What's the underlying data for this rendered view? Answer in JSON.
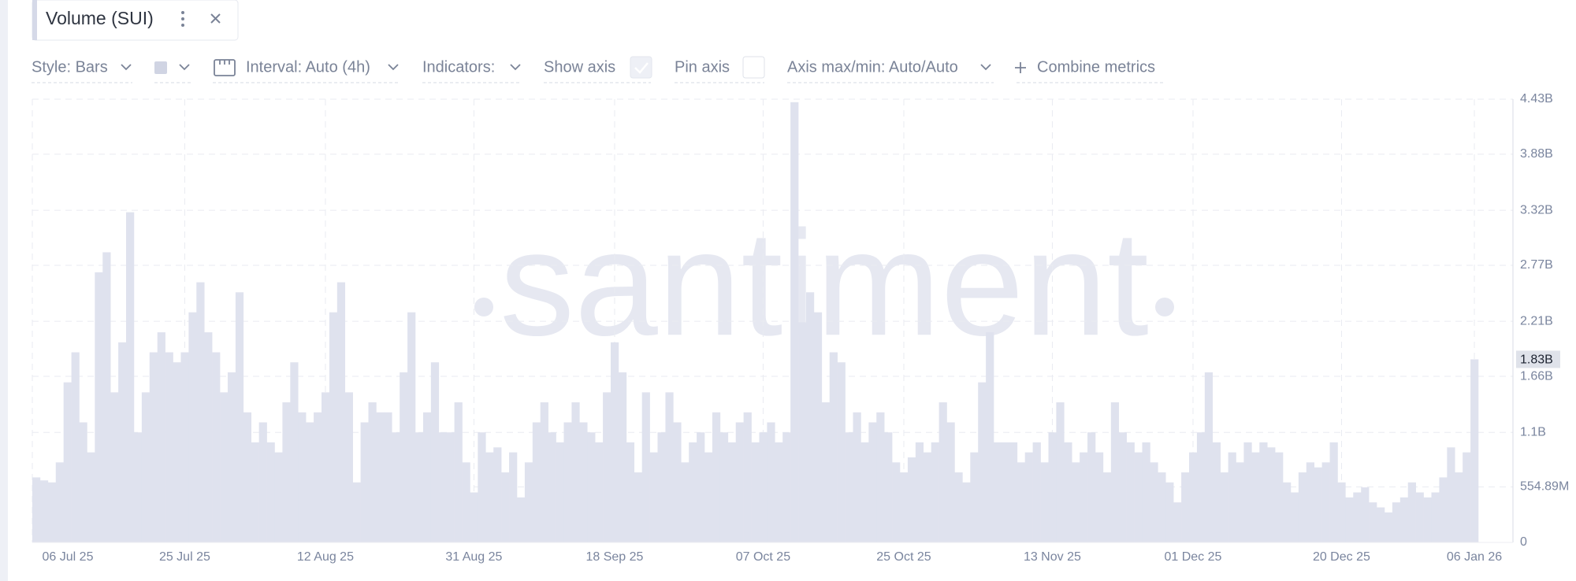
{
  "tab": {
    "title": "Volume (SUI)"
  },
  "toolbar": {
    "style": "Style: Bars",
    "interval": "Interval: Auto (4h)",
    "indicators": "Indicators:",
    "show_axis": "Show axis",
    "show_axis_checked": true,
    "pin_axis": "Pin axis",
    "pin_axis_checked": false,
    "axis_range": "Axis max/min: Auto/Auto",
    "combine": "Combine metrics"
  },
  "chart_data": {
    "type": "bar",
    "watermark": "santiment",
    "color": "#dfe2ee",
    "ylim": [
      0,
      4430000000
    ],
    "yticks": [
      0,
      {
        "value": 554890000,
        "label": "554.89M"
      },
      {
        "value": 1100000000,
        "label": "1.1B"
      },
      {
        "value": 1660000000,
        "label": "1.66B"
      },
      {
        "value": 2210000000,
        "label": "2.21B"
      },
      {
        "value": 2770000000,
        "label": "2.77B"
      },
      {
        "value": 3320000000,
        "label": "3.32B"
      },
      {
        "value": 3880000000,
        "label": "3.88B"
      },
      {
        "value": 4430000000,
        "label": "4.43B"
      }
    ],
    "grid": true,
    "current_value": {
      "value": 1830000000,
      "label": "1.83B"
    },
    "categories": [
      "06 Jul 25",
      null,
      null,
      null,
      null,
      null,
      null,
      null,
      null,
      null,
      null,
      null,
      null,
      null,
      null,
      null,
      null,
      null,
      null,
      "25 Jul 25",
      null,
      null,
      null,
      null,
      null,
      null,
      null,
      null,
      null,
      null,
      null,
      null,
      null,
      null,
      null,
      null,
      null,
      "12 Aug 25",
      null,
      null,
      null,
      null,
      null,
      null,
      null,
      null,
      null,
      null,
      null,
      null,
      null,
      null,
      null,
      null,
      null,
      null,
      "31 Aug 25",
      null,
      null,
      null,
      null,
      null,
      null,
      null,
      null,
      null,
      null,
      null,
      null,
      null,
      null,
      null,
      null,
      null,
      "18 Sep 25",
      null,
      null,
      null,
      null,
      null,
      null,
      null,
      null,
      null,
      null,
      null,
      null,
      null,
      null,
      null,
      null,
      null,
      null,
      "07 Oct 25",
      null,
      null,
      null,
      null,
      null,
      null,
      null,
      null,
      null,
      null,
      null,
      null,
      null,
      null,
      null,
      null,
      null,
      "25 Oct 25",
      null,
      null,
      null,
      null,
      null,
      null,
      null,
      null,
      null,
      null,
      null,
      null,
      null,
      null,
      null,
      null,
      null,
      null,
      "13 Nov 25",
      null,
      null,
      null,
      null,
      null,
      null,
      null,
      null,
      null,
      null,
      null,
      null,
      null,
      null,
      null,
      null,
      null,
      "01 Dec 25",
      null,
      null,
      null,
      null,
      null,
      null,
      null,
      null,
      null,
      null,
      null,
      null,
      null,
      null,
      null,
      null,
      null,
      null,
      "20 Dec 25",
      null,
      null,
      null,
      null,
      null,
      null,
      null,
      null,
      null,
      null,
      null,
      null,
      null,
      null,
      null,
      null,
      "06 Jan 26"
    ],
    "values": [
      650000000.0,
      620000000.0,
      600000000.0,
      800000000.0,
      1600000000.0,
      1900000000.0,
      1200000000.0,
      900000000.0,
      2700000000.0,
      2900000000.0,
      1500000000.0,
      2000000000.0,
      3300000000.0,
      1100000000.0,
      1500000000.0,
      1900000000.0,
      2100000000.0,
      1900000000.0,
      1800000000.0,
      1900000000.0,
      2300000000.0,
      2600000000.0,
      2100000000.0,
      1900000000.0,
      1500000000.0,
      1700000000.0,
      2500000000.0,
      1300000000.0,
      1000000000.0,
      1200000000.0,
      1000000000.0,
      900000000.0,
      1400000000.0,
      1800000000.0,
      1300000000.0,
      1200000000.0,
      1300000000.0,
      1500000000.0,
      2300000000.0,
      2600000000.0,
      1500000000.0,
      600000000.0,
      1200000000.0,
      1400000000.0,
      1300000000.0,
      1300000000.0,
      1100000000.0,
      1700000000.0,
      2300000000.0,
      1100000000.0,
      1300000000.0,
      1800000000.0,
      1100000000.0,
      1100000000.0,
      1400000000.0,
      800000000.0,
      500000000.0,
      1100000000.0,
      900000000.0,
      950000000.0,
      700000000.0,
      900000000.0,
      450000000.0,
      800000000.0,
      1200000000.0,
      1400000000.0,
      1100000000.0,
      1000000000.0,
      1200000000.0,
      1400000000.0,
      1200000000.0,
      1100000000.0,
      1000000000.0,
      1500000000.0,
      2000000000.0,
      1700000000.0,
      1000000000.0,
      700000000.0,
      1500000000.0,
      900000000.0,
      1100000000.0,
      1500000000.0,
      1200000000.0,
      800000000.0,
      1000000000.0,
      1100000000.0,
      900000000.0,
      1300000000.0,
      1100000000.0,
      1000000000.0,
      1200000000.0,
      1300000000.0,
      1000000000.0,
      1100000000.0,
      1200000000.0,
      1000000000.0,
      1100000000.0,
      4400000000.0,
      2200000000.0,
      2500000000.0,
      2300000000.0,
      1400000000.0,
      1900000000.0,
      1800000000.0,
      1100000000.0,
      1300000000.0,
      1000000000.0,
      1200000000.0,
      1300000000.0,
      1100000000.0,
      800000000.0,
      700000000.0,
      850000000.0,
      1000000000.0,
      900000000.0,
      1000000000.0,
      1400000000.0,
      1200000000.0,
      700000000.0,
      600000000.0,
      900000000.0,
      1600000000.0,
      2100000000.0,
      1000000000.0,
      1000000000.0,
      1000000000.0,
      800000000.0,
      900000000.0,
      1000000000.0,
      800000000.0,
      1100000000.0,
      1400000000.0,
      1000000000.0,
      800000000.0,
      900000000.0,
      1100000000.0,
      900000000.0,
      700000000.0,
      1400000000.0,
      1100000000.0,
      1000000000.0,
      900000000.0,
      1000000000.0,
      800000000.0,
      700000000.0,
      600000000.0,
      400000000.0,
      700000000.0,
      900000000.0,
      1100000000.0,
      1700000000.0,
      1000000000.0,
      700000000.0,
      900000000.0,
      800000000.0,
      1000000000.0,
      900000000.0,
      1000000000.0,
      950000000.0,
      900000000.0,
      600000000.0,
      500000000.0,
      700000000.0,
      800000000.0,
      750000000.0,
      800000000.0,
      1000000000.0,
      600000000.0,
      450000000.0,
      500000000.0,
      550000000.0,
      400000000.0,
      350000000.0,
      300000000.0,
      400000000.0,
      450000000.0,
      600000000.0,
      500000000.0,
      450000000.0,
      500000000.0,
      650000000.0,
      950000000.0,
      700000000.0,
      900000000.0,
      1830000000.0
    ]
  }
}
